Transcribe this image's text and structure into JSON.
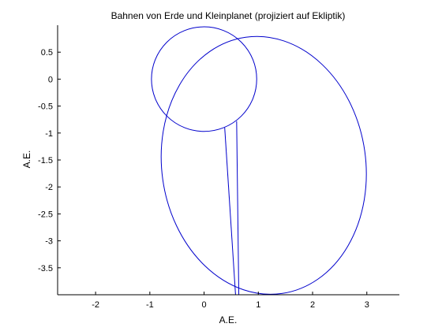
{
  "chart_data": {
    "type": "line",
    "title": "Bahnen von Erde und Kleinplanet (projiziert auf Ekliptik)",
    "xlabel": "A.E.",
    "ylabel": "A.E.",
    "xlim": [
      -2.7,
      3.6
    ],
    "ylim": [
      -4.0,
      1.0
    ],
    "xticks": [
      "-2",
      "-1",
      "0",
      "1",
      "2",
      "3"
    ],
    "xtick_values": [
      -2,
      -1,
      0,
      1,
      2,
      3
    ],
    "yticks": [
      "0.5",
      "0",
      "-0.5",
      "-1",
      "-1.5",
      "-2",
      "-2.5",
      "-3",
      "-3.5"
    ],
    "ytick_values": [
      0.5,
      0,
      -0.5,
      -1,
      -1.5,
      -2,
      -2.5,
      -3,
      -3.5
    ],
    "grid": false,
    "color": "#0000cc",
    "series": [
      {
        "kind": "ellipse",
        "cx": 0.0,
        "cy": 0.0,
        "rx": 0.97,
        "ry": 0.97
      },
      {
        "kind": "ellipse",
        "cx": 1.1,
        "cy": -1.6,
        "rx": 1.88,
        "ry": 2.4,
        "rotation_deg": -8
      },
      {
        "kind": "line",
        "x": [
          0.38,
          0.58
        ],
        "y": [
          -0.9,
          -4.0
        ]
      },
      {
        "kind": "line",
        "x": [
          0.6,
          0.64
        ],
        "y": [
          -0.78,
          -4.0
        ]
      }
    ]
  }
}
